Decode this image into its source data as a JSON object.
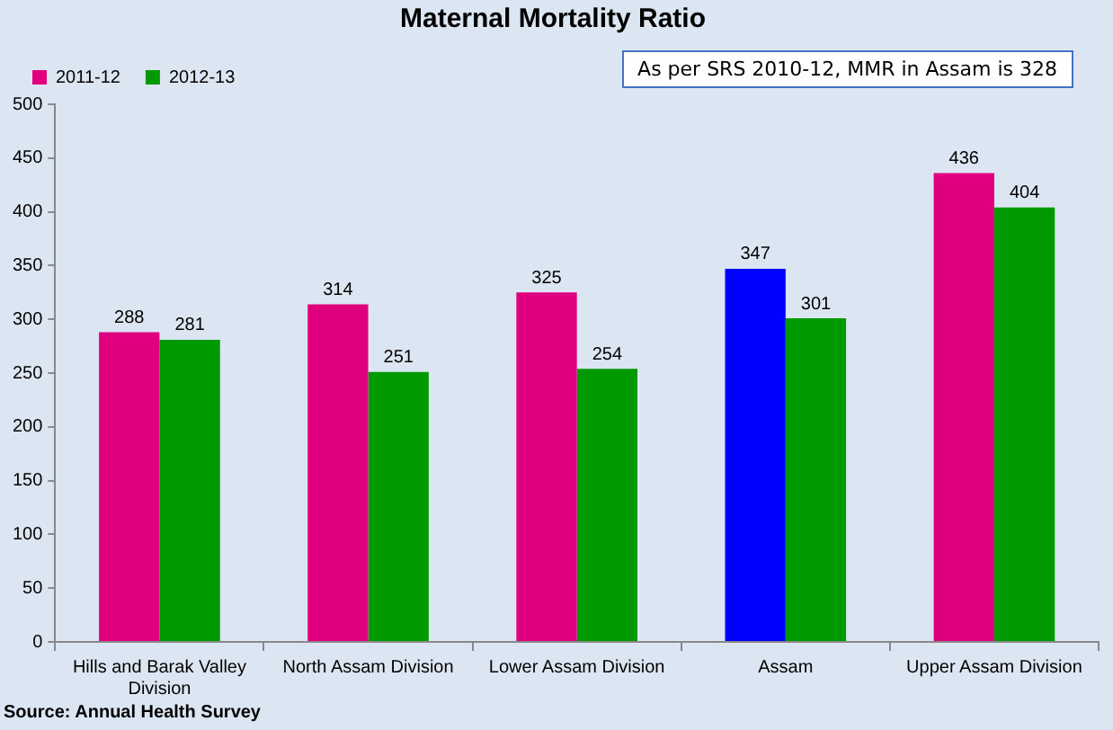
{
  "chart_data": {
    "type": "bar",
    "title": "Maternal Mortality Ratio",
    "categories": [
      "Hills and Barak Valley Division",
      "North Assam Division",
      "Lower Assam Division",
      "Assam",
      "Upper Assam Division"
    ],
    "series": [
      {
        "name": "2011-12",
        "color": "#e0007f",
        "colors": [
          "#e0007f",
          "#e0007f",
          "#e0007f",
          "#0000ff",
          "#e0007f"
        ],
        "values": [
          288,
          314,
          325,
          347,
          436
        ]
      },
      {
        "name": "2012-13",
        "color": "#009a00",
        "values": [
          281,
          251,
          254,
          301,
          404
        ]
      }
    ],
    "ylim": [
      0,
      500
    ],
    "yticks": [
      0,
      50,
      100,
      150,
      200,
      250,
      300,
      350,
      400,
      450,
      500
    ],
    "grid": false,
    "legend": "top",
    "data_labels": true,
    "annotations": [
      "As per SRS 2010-12, MMR in Assam is 328",
      "Source: Annual Health Survey"
    ]
  }
}
